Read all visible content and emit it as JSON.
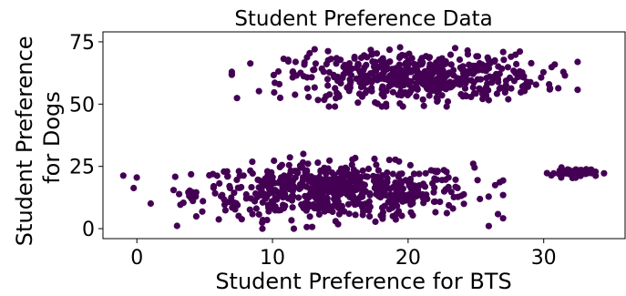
{
  "chart_data": {
    "type": "scatter",
    "title": "Student Preference Data",
    "xlabel": "Student Preference for BTS",
    "ylabel_lines": [
      "Student Preference",
      "for Dogs"
    ],
    "xlim": [
      -2.5,
      36
    ],
    "ylim": [
      -4,
      79
    ],
    "xticks": [
      0,
      10,
      20,
      30
    ],
    "yticks": [
      0,
      25,
      50,
      75
    ],
    "grid": false,
    "legend": "none",
    "marker_color": "#440154",
    "clusters": [
      {
        "description": "low-preference-for-dogs group",
        "count": 620,
        "x_center": 14.5,
        "x_range": [
          -1,
          27
        ],
        "y_center": 15,
        "y_range": [
          0,
          30
        ]
      },
      {
        "description": "high-preference-for-dogs group",
        "count": 520,
        "x_center": 20.5,
        "x_range": [
          7,
          32.5
        ],
        "y_center": 61,
        "y_range": [
          49,
          76
        ]
      },
      {
        "description": "high-BTS group",
        "count": 60,
        "x_center": 32.2,
        "x_range": [
          30,
          34.5
        ],
        "y_center": 22.5,
        "y_range": [
          20,
          25
        ]
      }
    ]
  }
}
